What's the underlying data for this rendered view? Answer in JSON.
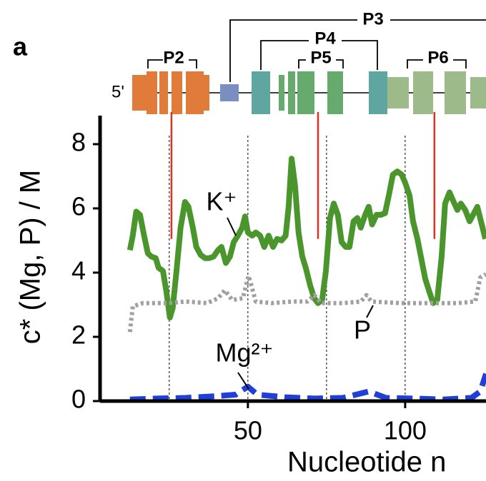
{
  "panel_label": "a",
  "structure": {
    "five_prime": "5'",
    "helices": [
      "P2",
      "P3",
      "P4",
      "P5",
      "P6"
    ]
  },
  "chart_data": {
    "type": "line",
    "xlabel": "Nucleotide n",
    "ylabel": "c* (Mg, P) / M",
    "xlim": [
      3,
      125.7
    ],
    "ylim": [
      0,
      8.8
    ],
    "xticks": [
      50,
      100
    ],
    "yticks": [
      0,
      2,
      4,
      6,
      8
    ],
    "xgrid": [
      25,
      50,
      75,
      100
    ],
    "markers": [
      25.7,
      72.3,
      109.3
    ],
    "marker_end": 5.05,
    "series": [
      {
        "name": "K⁺",
        "color": "#4a962c",
        "style": "solid",
        "x": [
          12.5,
          13.4,
          14.5,
          15.7,
          17.0,
          18.2,
          19.3,
          20.7,
          21.6,
          23.0,
          24.1,
          25.2,
          26.1,
          27.3,
          28.6,
          30.0,
          31.1,
          32.5,
          33.6,
          35.0,
          36.4,
          37.7,
          39.1,
          40.5,
          41.6,
          43.0,
          44.3,
          45.5,
          46.8,
          48.2,
          49.1,
          50.0,
          51.4,
          52.5,
          53.9,
          55.2,
          56.6,
          58.0,
          59.3,
          60.7,
          62.0,
          62.95,
          63.9,
          65.0,
          66.1,
          67.3,
          68.4,
          69.8,
          71.1,
          72.3,
          73.6,
          74.8,
          76.1,
          77.3,
          78.6,
          79.8,
          81.1,
          82.3,
          83.6,
          84.8,
          85.9,
          87.3,
          88.4,
          89.5,
          90.9,
          92.3,
          93.6,
          94.8,
          96.1,
          97.5,
          98.9,
          100.0,
          101.4,
          102.5,
          103.9,
          105.2,
          106.4,
          107.7,
          108.9,
          110.2,
          111.6,
          112.7,
          114.1,
          115.2,
          116.6,
          117.7,
          119.1,
          120.5,
          121.6,
          122.95,
          124.1,
          125.5
        ],
        "values": [
          4.7,
          5.15,
          5.9,
          5.8,
          5.15,
          4.6,
          4.5,
          4.45,
          4.15,
          4.05,
          3.4,
          2.6,
          2.9,
          4.05,
          5.4,
          6.2,
          6.05,
          5.4,
          4.8,
          4.55,
          4.45,
          4.45,
          4.5,
          4.7,
          4.8,
          4.3,
          4.5,
          4.95,
          5.15,
          5.4,
          5.75,
          5.25,
          5.15,
          5.25,
          5.15,
          4.8,
          5.15,
          4.8,
          5.05,
          5.0,
          5.15,
          6.05,
          7.55,
          6.7,
          5.25,
          4.5,
          4.15,
          3.6,
          3.2,
          3.05,
          3.15,
          4.05,
          5.7,
          6.15,
          5.8,
          4.95,
          4.8,
          4.8,
          5.6,
          5.7,
          5.4,
          5.8,
          6.05,
          5.5,
          5.8,
          5.8,
          5.85,
          6.4,
          7.05,
          7.15,
          7.05,
          6.8,
          6.4,
          5.6,
          5.05,
          4.4,
          3.8,
          3.4,
          3.05,
          3.15,
          4.5,
          6.15,
          6.5,
          6.25,
          5.95,
          6.15,
          5.95,
          5.6,
          5.8,
          6.05,
          5.6,
          5.05
        ]
      },
      {
        "name": "P",
        "color": "#a0a0a0",
        "style": "dotted",
        "x": [
          12.5,
          13.4,
          16.6,
          24.5,
          30.2,
          37.0,
          40.5,
          42.7,
          45.0,
          48.4,
          50.2,
          51.1,
          52.5,
          57.5,
          64.3,
          68.9,
          71.1,
          73.4,
          80.2,
          85.9,
          87.7,
          89.3,
          98.4,
          107.5,
          116.6,
          122.3,
          123.9,
          125.7
        ],
        "values": [
          2.15,
          2.95,
          3.05,
          3.05,
          3.1,
          3.05,
          3.2,
          3.45,
          3.15,
          3.2,
          3.9,
          3.6,
          3.1,
          3.05,
          3.1,
          3.1,
          3.3,
          3.05,
          3.05,
          3.1,
          3.3,
          3.1,
          3.05,
          3.05,
          3.05,
          3.1,
          3.85,
          3.95
        ]
      },
      {
        "name": "Mg²⁺",
        "color": "#1f3fd6",
        "style": "dashed",
        "x": [
          12.5,
          21.1,
          30.2,
          39.3,
          46.1,
          50.0,
          53.0,
          62.0,
          71.1,
          80.2,
          88.4,
          93.9,
          103.0,
          112.0,
          121.1,
          123.9,
          125.7
        ],
        "values": [
          0.05,
          0.08,
          0.1,
          0.15,
          0.2,
          0.45,
          0.2,
          0.12,
          0.08,
          0.1,
          0.3,
          0.1,
          0.08,
          0.05,
          0.1,
          0.3,
          0.85
        ]
      }
    ]
  }
}
